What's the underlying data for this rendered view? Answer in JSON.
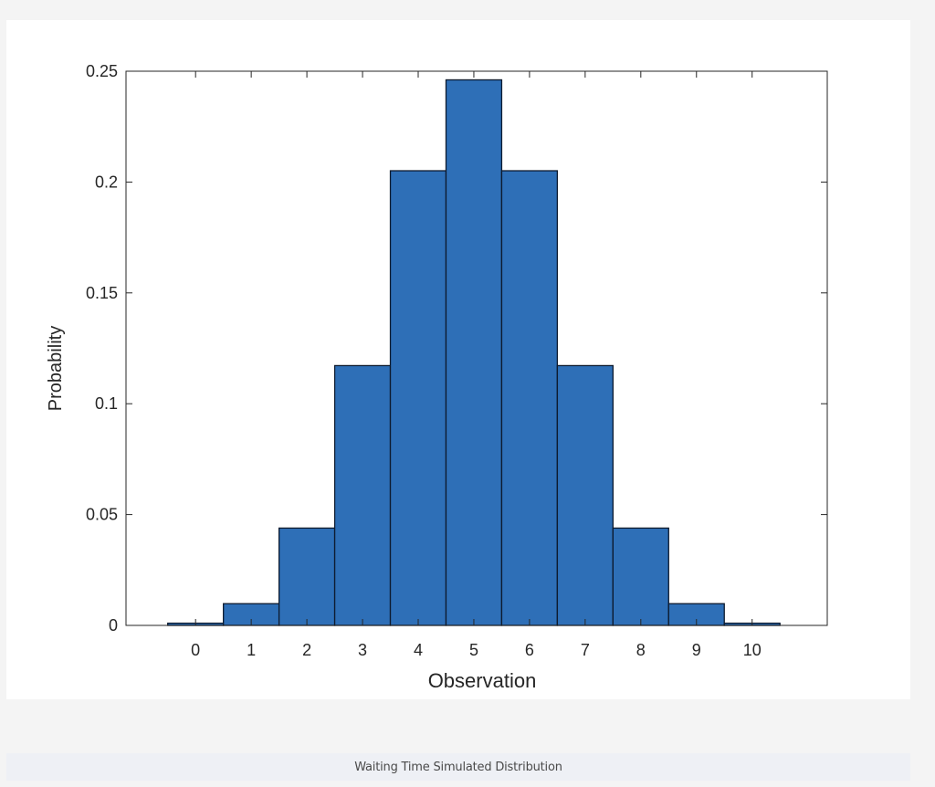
{
  "caption": "Waiting Time Simulated Distribution",
  "colors": {
    "bar_fill": "#2e6fb7",
    "bar_edge": "#0d1a2e",
    "axis": "#262626"
  },
  "chart_data": {
    "type": "bar",
    "categories": [
      "0",
      "1",
      "2",
      "3",
      "4",
      "5",
      "6",
      "7",
      "8",
      "9",
      "10"
    ],
    "values": [
      0.001,
      0.0098,
      0.0439,
      0.1172,
      0.2051,
      0.2461,
      0.2051,
      0.1172,
      0.0439,
      0.0098,
      0.001
    ],
    "xlabel": "Observation",
    "ylabel": "Probability",
    "xlim": [
      -1.25,
      11.35
    ],
    "ylim": [
      0,
      0.25
    ],
    "yticks": [
      0,
      0.05,
      0.1,
      0.15,
      0.2,
      0.25
    ],
    "ytick_labels": [
      "0",
      "0.05",
      "0.1",
      "0.15",
      "0.2",
      "0.25"
    ],
    "grid": false,
    "box": true
  }
}
